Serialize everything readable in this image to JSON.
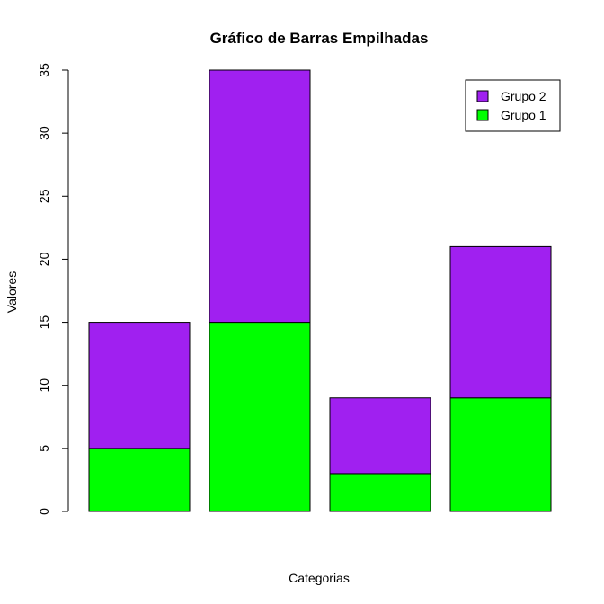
{
  "chart_data": {
    "type": "bar",
    "stacked": true,
    "title": "Gráfico de Barras Empilhadas",
    "xlabel": "Categorias",
    "ylabel": "Valores",
    "categories": [
      "",
      "",
      "",
      ""
    ],
    "ylim": [
      0,
      35
    ],
    "yticks": [
      0,
      5,
      10,
      15,
      20,
      25,
      30,
      35
    ],
    "grid": false,
    "legend_position": "top-right",
    "series": [
      {
        "name": "Grupo 1",
        "values": [
          5,
          15,
          3,
          9
        ],
        "color": "#00FF00"
      },
      {
        "name": "Grupo 2",
        "values": [
          10,
          20,
          6,
          12
        ],
        "color": "#A020F0"
      }
    ],
    "legend_order": [
      "Grupo 2",
      "Grupo 1"
    ]
  }
}
